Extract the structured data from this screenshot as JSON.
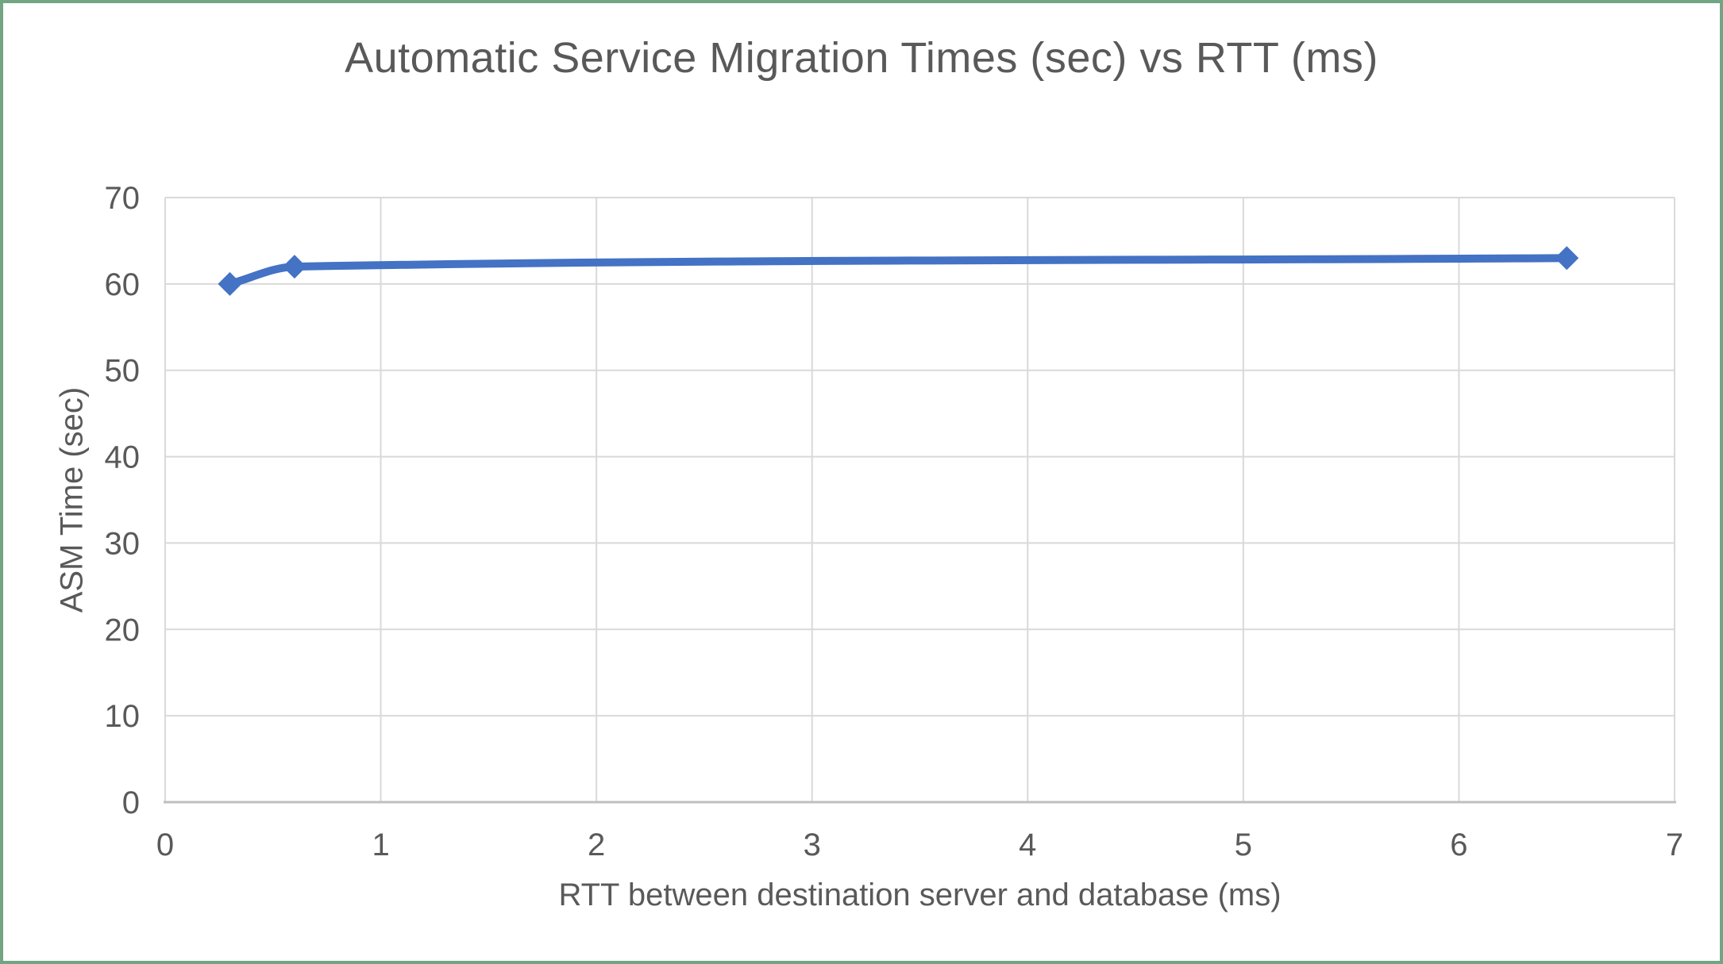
{
  "frame": {
    "border_color": "#72A583",
    "background_color": "#FFFFFF"
  },
  "chart_data": {
    "type": "line",
    "title": "Automatic Service Migration Times (sec) vs RTT (ms)",
    "xlabel": "RTT between destination server and database (ms)",
    "ylabel": "ASM Time (sec)",
    "series": [
      {
        "name": "ASM Time",
        "x": [
          0.3,
          0.6,
          6.5
        ],
        "y": [
          60,
          62,
          63
        ]
      }
    ],
    "xlim": [
      0,
      7
    ],
    "ylim": [
      0,
      70
    ],
    "x_ticks": [
      0,
      1,
      2,
      3,
      4,
      5,
      6,
      7
    ],
    "y_ticks": [
      0,
      10,
      20,
      30,
      40,
      50,
      60,
      70
    ],
    "grid": true,
    "legend": false,
    "smooth": true,
    "marker": "diamond",
    "line_color": "#4472C4",
    "marker_color": "#4472C4",
    "gridline_color": "#D9D9D9",
    "axis_line_color": "#BFBFBF",
    "text_color": "#595959"
  }
}
